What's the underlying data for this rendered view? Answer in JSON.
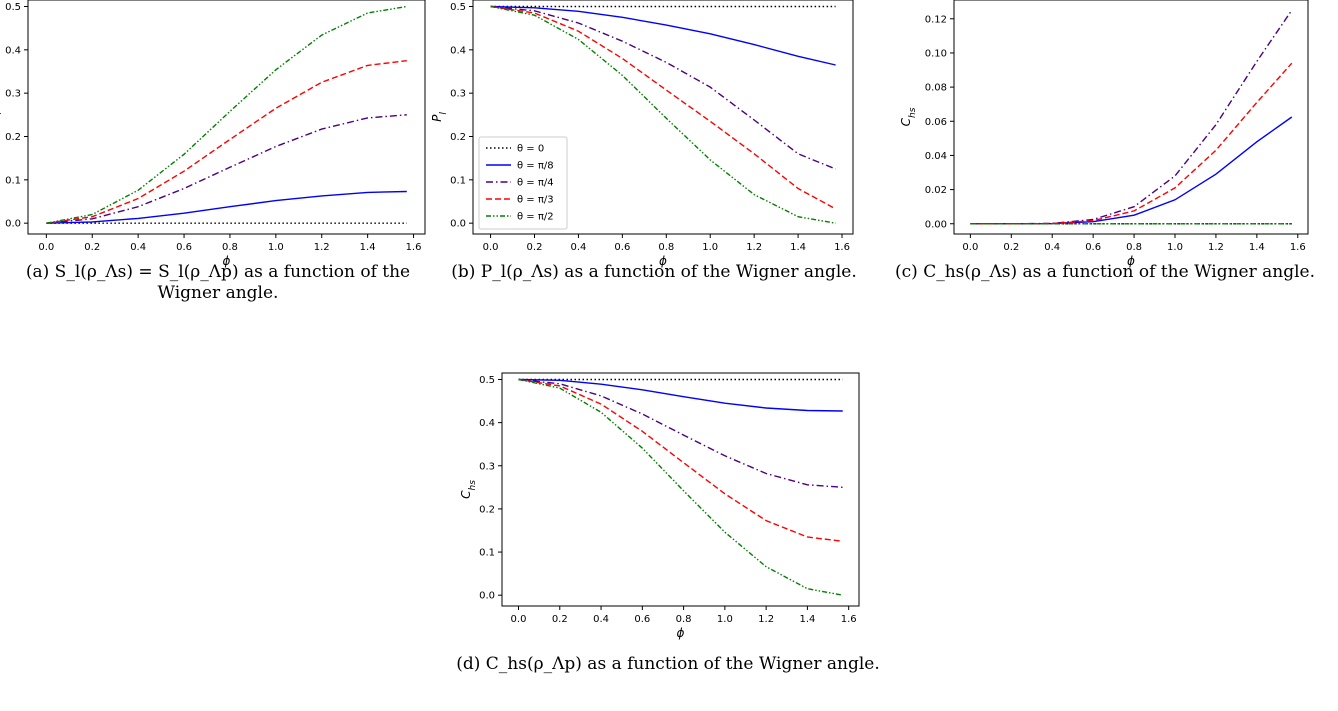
{
  "colors": {
    "theta_0": "#000000",
    "theta_pi8": "#0000ff",
    "theta_pi4": "#4b0082",
    "theta_pi3": "#ff0000",
    "theta_pi2": "#008000",
    "axes": "#000000"
  },
  "legend_placement": "lower-left (panel b only)",
  "series_names": [
    "θ = 0",
    "θ = π/8",
    "θ = π/4",
    "θ = π/3",
    "θ = π/2"
  ],
  "series_styles": [
    "dotted",
    "solid",
    "dashdot",
    "dashed",
    "dashdotdot"
  ],
  "captions": {
    "a": "(a) S_l(ρ_Λs) = S_l(ρ_Λp) as a function of the Wigner angle.",
    "b": "(b) P_l(ρ_Λs) as a function of the Wigner angle.",
    "c": "(c) C_hs(ρ_Λs) as a function of the Wigner angle.",
    "d": "(d) C_hs(ρ_Λp) as a function of the Wigner angle."
  },
  "chart_data": [
    {
      "id": "a",
      "type": "line",
      "title": "",
      "xlabel": "ϕ",
      "ylabel": "S_l",
      "xlim": [
        -0.08,
        1.65
      ],
      "ylim": [
        -0.025,
        0.515
      ],
      "xticks": [
        0.0,
        0.2,
        0.4,
        0.6,
        0.8,
        1.0,
        1.2,
        1.4,
        1.6
      ],
      "yticks": [
        0.0,
        0.1,
        0.2,
        0.3,
        0.4,
        0.5
      ],
      "x": [
        0,
        0.2,
        0.4,
        0.6,
        0.8,
        1.0,
        1.2,
        1.4,
        1.5708
      ],
      "series": [
        {
          "name": "θ = 0",
          "values": [
            0,
            0,
            0,
            0,
            0,
            0,
            0,
            0,
            0
          ]
        },
        {
          "name": "θ = π/8",
          "values": [
            0,
            0.003,
            0.011,
            0.023,
            0.038,
            0.052,
            0.063,
            0.071,
            0.073
          ]
        },
        {
          "name": "θ = π/4",
          "values": [
            0,
            0.01,
            0.038,
            0.08,
            0.129,
            0.177,
            0.217,
            0.243,
            0.25
          ]
        },
        {
          "name": "θ = π/3",
          "values": [
            0,
            0.015,
            0.057,
            0.12,
            0.193,
            0.265,
            0.325,
            0.364,
            0.375
          ]
        },
        {
          "name": "θ = π/2",
          "values": [
            0,
            0.02,
            0.076,
            0.159,
            0.258,
            0.354,
            0.434,
            0.485,
            0.5
          ]
        }
      ]
    },
    {
      "id": "b",
      "type": "line",
      "title": "",
      "xlabel": "ϕ",
      "ylabel": "P_l",
      "xlim": [
        -0.08,
        1.65
      ],
      "ylim": [
        -0.025,
        0.515
      ],
      "xticks": [
        0.0,
        0.2,
        0.4,
        0.6,
        0.8,
        1.0,
        1.2,
        1.4,
        1.6
      ],
      "yticks": [
        0.0,
        0.1,
        0.2,
        0.3,
        0.4,
        0.5
      ],
      "legend": "lower-left",
      "x": [
        0,
        0.2,
        0.4,
        0.6,
        0.8,
        1.0,
        1.2,
        1.4,
        1.5708
      ],
      "series": [
        {
          "name": "θ = 0",
          "values": [
            0.5,
            0.5,
            0.5,
            0.5,
            0.5,
            0.5,
            0.5,
            0.5,
            0.5
          ]
        },
        {
          "name": "θ = π/8",
          "values": [
            0.5,
            0.497,
            0.489,
            0.475,
            0.457,
            0.437,
            0.412,
            0.385,
            0.365
          ]
        },
        {
          "name": "θ = π/4",
          "values": [
            0.5,
            0.49,
            0.462,
            0.42,
            0.371,
            0.314,
            0.238,
            0.16,
            0.125
          ]
        },
        {
          "name": "θ = π/3",
          "values": [
            0.5,
            0.485,
            0.443,
            0.38,
            0.307,
            0.235,
            0.16,
            0.08,
            0.033
          ]
        },
        {
          "name": "θ = π/2",
          "values": [
            0.5,
            0.48,
            0.424,
            0.341,
            0.242,
            0.146,
            0.066,
            0.015,
            0.0
          ]
        }
      ]
    },
    {
      "id": "c",
      "type": "line",
      "title": "",
      "xlabel": "ϕ",
      "ylabel": "C_hs",
      "xlim": [
        -0.08,
        1.65
      ],
      "ylim": [
        -0.006,
        0.131
      ],
      "xticks": [
        0.0,
        0.2,
        0.4,
        0.6,
        0.8,
        1.0,
        1.2,
        1.4,
        1.6
      ],
      "yticks": [
        0.0,
        0.02,
        0.04,
        0.06,
        0.08,
        0.1,
        0.12
      ],
      "x": [
        0,
        0.2,
        0.4,
        0.6,
        0.8,
        1.0,
        1.2,
        1.4,
        1.5708
      ],
      "series": [
        {
          "name": "θ = 0",
          "values": [
            0,
            0,
            0,
            0,
            0,
            0,
            0,
            0,
            0
          ]
        },
        {
          "name": "θ = π/8",
          "values": [
            0,
            0.0,
            0.0001,
            0.0012,
            0.005,
            0.014,
            0.029,
            0.048,
            0.0625
          ]
        },
        {
          "name": "θ = π/4",
          "values": [
            0,
            0.0,
            0.0002,
            0.0025,
            0.01,
            0.028,
            0.058,
            0.095,
            0.125
          ]
        },
        {
          "name": "θ = π/3",
          "values": [
            0,
            0.0,
            0.0001,
            0.0018,
            0.0075,
            0.021,
            0.043,
            0.071,
            0.094
          ]
        },
        {
          "name": "θ = π/2",
          "values": [
            0,
            0,
            0,
            0,
            0,
            0,
            0,
            0,
            0
          ]
        }
      ]
    },
    {
      "id": "d",
      "type": "line",
      "title": "",
      "xlabel": "ϕ",
      "ylabel": "C_hs",
      "xlim": [
        -0.08,
        1.65
      ],
      "ylim": [
        -0.025,
        0.515
      ],
      "xticks": [
        0.0,
        0.2,
        0.4,
        0.6,
        0.8,
        1.0,
        1.2,
        1.4,
        1.6
      ],
      "yticks": [
        0.0,
        0.1,
        0.2,
        0.3,
        0.4,
        0.5
      ],
      "x": [
        0,
        0.2,
        0.4,
        0.6,
        0.8,
        1.0,
        1.2,
        1.4,
        1.5708
      ],
      "series": [
        {
          "name": "θ = 0",
          "values": [
            0.5,
            0.5,
            0.5,
            0.5,
            0.5,
            0.5,
            0.5,
            0.5,
            0.5
          ]
        },
        {
          "name": "θ = π/8",
          "values": [
            0.5,
            0.498,
            0.489,
            0.476,
            0.46,
            0.445,
            0.434,
            0.428,
            0.427
          ]
        },
        {
          "name": "θ = π/4",
          "values": [
            0.5,
            0.49,
            0.462,
            0.42,
            0.371,
            0.323,
            0.282,
            0.256,
            0.25
          ]
        },
        {
          "name": "θ = π/3",
          "values": [
            0.5,
            0.485,
            0.443,
            0.38,
            0.307,
            0.235,
            0.173,
            0.135,
            0.125
          ]
        },
        {
          "name": "θ = π/2",
          "values": [
            0.5,
            0.48,
            0.424,
            0.341,
            0.242,
            0.146,
            0.066,
            0.015,
            0.0
          ]
        }
      ]
    }
  ]
}
